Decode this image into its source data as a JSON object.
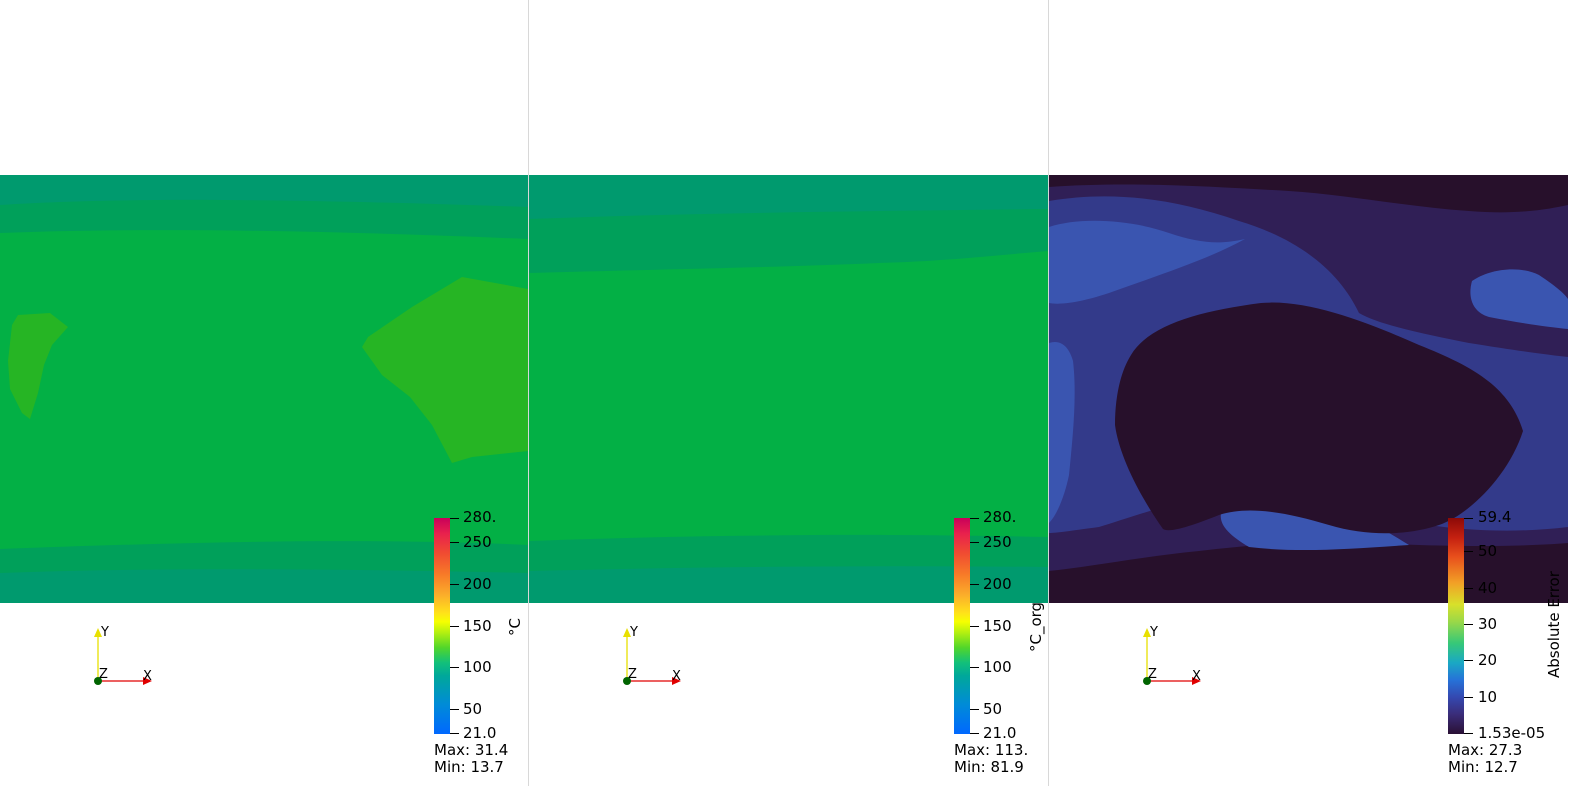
{
  "views": [
    {
      "id": "predicted",
      "colorbar": {
        "title": "°C",
        "ticks": [
          "280.",
          "250",
          "200",
          "150",
          "100",
          "50",
          "21.0"
        ],
        "max_label": "Max: 31.4",
        "min_label": "Min: 13.7"
      }
    },
    {
      "id": "original",
      "colorbar": {
        "title": "°C_org",
        "ticks": [
          "280.",
          "250",
          "200",
          "150",
          "100",
          "50",
          "21.0"
        ],
        "max_label": "Max: 113.",
        "min_label": "Min: 81.9"
      }
    },
    {
      "id": "error",
      "colorbar": {
        "title": "Absolute Error",
        "ticks": [
          "59.4",
          "50",
          "40",
          "30",
          "20",
          "10",
          "1.53e-05"
        ],
        "max_label": "Max: 27.3",
        "min_label": "Min: 12.7"
      }
    }
  ],
  "axes_labels": {
    "x": "X",
    "y": "Y",
    "z": "Z"
  },
  "colors": {
    "temp_dark_teal": "#009a6e",
    "temp_teal": "#00a05a",
    "temp_green": "#03b045",
    "temp_light_green": "#26b524",
    "err_darkest": "#27102b",
    "err_dark": "#301f56",
    "err_mid": "#333a8a",
    "err_light": "#3a55b0"
  }
}
